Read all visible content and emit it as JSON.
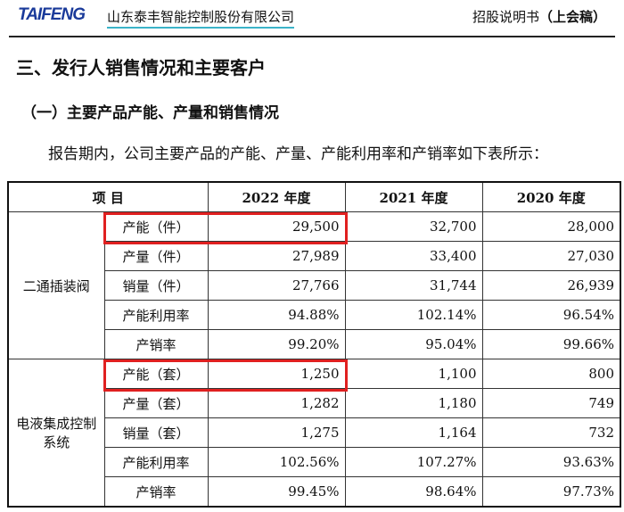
{
  "header": {
    "logo": "TAIFENG",
    "company": "山东泰丰智能控制股份有限公司",
    "doc_type": "招股说明书",
    "doc_status": "（上会稿）"
  },
  "section_title": "三、发行人销售情况和主要客户",
  "subsection_title": "（一）主要产品产能、产量和销售情况",
  "intro": "报告期内，公司主要产品的产能、产量、产能利用率和产销率如下表所示：",
  "highlight_color": "#e02020",
  "table": {
    "headers": [
      "项  目",
      "2022 年度",
      "2021 年度",
      "2020 年度"
    ],
    "groups": [
      {
        "name": "二通插装阀",
        "rows": [
          {
            "label": "产能（件）",
            "values": [
              "29,500",
              "32,700",
              "28,000"
            ]
          },
          {
            "label": "产量（件）",
            "values": [
              "27,989",
              "33,400",
              "27,030"
            ]
          },
          {
            "label": "销量（件）",
            "values": [
              "27,766",
              "31,744",
              "26,939"
            ]
          },
          {
            "label": "产能利用率",
            "values": [
              "94.88%",
              "102.14%",
              "96.54%"
            ]
          },
          {
            "label": "产销率",
            "values": [
              "99.20%",
              "95.04%",
              "99.66%"
            ]
          }
        ]
      },
      {
        "name": "电液集成控制系统",
        "rows": [
          {
            "label": "产能（套）",
            "values": [
              "1,250",
              "1,100",
              "800"
            ]
          },
          {
            "label": "产量（套）",
            "values": [
              "1,282",
              "1,180",
              "749"
            ]
          },
          {
            "label": "销量（套）",
            "values": [
              "1,275",
              "1,164",
              "732"
            ]
          },
          {
            "label": "产能利用率",
            "values": [
              "102.56%",
              "107.27%",
              "93.63%"
            ]
          },
          {
            "label": "产销率",
            "values": [
              "99.45%",
              "98.64%",
              "97.73%"
            ]
          }
        ]
      }
    ]
  }
}
